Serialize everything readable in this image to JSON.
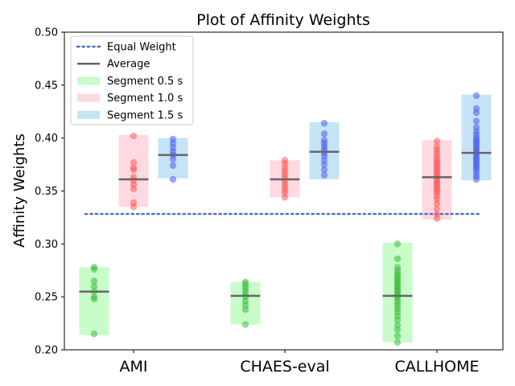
{
  "chart_data": {
    "type": "scatter",
    "title": "Plot of Affinity Weights",
    "xlabel": "",
    "ylabel": "Affinity Weights",
    "ylim": [
      0.2,
      0.5
    ],
    "yticks": [
      "0.20",
      "0.25",
      "0.30",
      "0.35",
      "0.40",
      "0.45",
      "0.50"
    ],
    "ytick_values": [
      0.2,
      0.25,
      0.3,
      0.35,
      0.4,
      0.45,
      0.5
    ],
    "categories": [
      "AMI",
      "CHAES-eval",
      "CALLHOME"
    ],
    "equal_weight": 0.3283,
    "legend_position": "upper-left",
    "legend": [
      {
        "label": "Equal Weight",
        "kind": "dotted-line",
        "color": "#4472c4"
      },
      {
        "label": "Average",
        "kind": "line",
        "color": "#666666"
      },
      {
        "label": "Segment 0.5 s",
        "kind": "patch",
        "color": "#c8fcc8"
      },
      {
        "label": "Segment 1.0 s",
        "kind": "patch",
        "color": "#ffd9e0"
      },
      {
        "label": "Segment 1.5 s",
        "kind": "patch",
        "color": "#c5e4f5"
      }
    ],
    "series": [
      {
        "name": "Segment 0.5 s",
        "band_color": "#c8fcc8",
        "point_color": "#3cbc3c",
        "groups": [
          {
            "category": "AMI",
            "min": 0.214,
            "max": 0.278,
            "avg": 0.255,
            "points": [
              0.215,
              0.248,
              0.25,
              0.255,
              0.26,
              0.265,
              0.276,
              0.278
            ]
          },
          {
            "category": "CHAES-eval",
            "min": 0.224,
            "max": 0.264,
            "avg": 0.251,
            "points": [
              0.224,
              0.238,
              0.242,
              0.246,
              0.25,
              0.253,
              0.256,
              0.259,
              0.262,
              0.264
            ]
          },
          {
            "category": "CALLHOME",
            "min": 0.207,
            "max": 0.301,
            "avg": 0.251,
            "points": [
              0.207,
              0.213,
              0.219,
              0.223,
              0.228,
              0.232,
              0.236,
              0.239,
              0.242,
              0.245,
              0.248,
              0.25,
              0.252,
              0.254,
              0.256,
              0.258,
              0.26,
              0.262,
              0.264,
              0.266,
              0.268,
              0.27,
              0.272,
              0.275,
              0.278,
              0.286,
              0.3
            ]
          }
        ]
      },
      {
        "name": "Segment 1.0 s",
        "band_color": "#ffd9e0",
        "point_color": "#ff5a5a",
        "groups": [
          {
            "category": "AMI",
            "min": 0.335,
            "max": 0.403,
            "avg": 0.361,
            "points": [
              0.335,
              0.339,
              0.352,
              0.356,
              0.36,
              0.363,
              0.37,
              0.372,
              0.377,
              0.402
            ]
          },
          {
            "category": "CHAES-eval",
            "min": 0.344,
            "max": 0.379,
            "avg": 0.361,
            "points": [
              0.344,
              0.348,
              0.351,
              0.354,
              0.357,
              0.36,
              0.363,
              0.366,
              0.369,
              0.372,
              0.376,
              0.379
            ]
          },
          {
            "category": "CALLHOME",
            "min": 0.323,
            "max": 0.398,
            "avg": 0.363,
            "points": [
              0.324,
              0.328,
              0.333,
              0.338,
              0.342,
              0.345,
              0.348,
              0.35,
              0.352,
              0.354,
              0.356,
              0.358,
              0.36,
              0.362,
              0.364,
              0.366,
              0.368,
              0.37,
              0.372,
              0.374,
              0.376,
              0.378,
              0.38,
              0.383,
              0.386,
              0.389,
              0.392,
              0.397
            ]
          }
        ]
      },
      {
        "name": "Segment 1.5 s",
        "band_color": "#c5e4f5",
        "point_color": "#4a5cf0",
        "groups": [
          {
            "category": "AMI",
            "min": 0.362,
            "max": 0.4,
            "avg": 0.384,
            "points": [
              0.361,
              0.374,
              0.38,
              0.384,
              0.387,
              0.391,
              0.395,
              0.399
            ]
          },
          {
            "category": "CHAES-eval",
            "min": 0.361,
            "max": 0.415,
            "avg": 0.387,
            "points": [
              0.365,
              0.37,
              0.375,
              0.379,
              0.383,
              0.386,
              0.389,
              0.392,
              0.395,
              0.398,
              0.404,
              0.414
            ]
          },
          {
            "category": "CALLHOME",
            "min": 0.36,
            "max": 0.441,
            "avg": 0.386,
            "points": [
              0.361,
              0.364,
              0.367,
              0.37,
              0.372,
              0.374,
              0.376,
              0.378,
              0.38,
              0.382,
              0.384,
              0.386,
              0.388,
              0.39,
              0.392,
              0.394,
              0.396,
              0.398,
              0.4,
              0.403,
              0.406,
              0.41,
              0.416,
              0.424,
              0.428,
              0.44
            ]
          }
        ]
      }
    ]
  }
}
